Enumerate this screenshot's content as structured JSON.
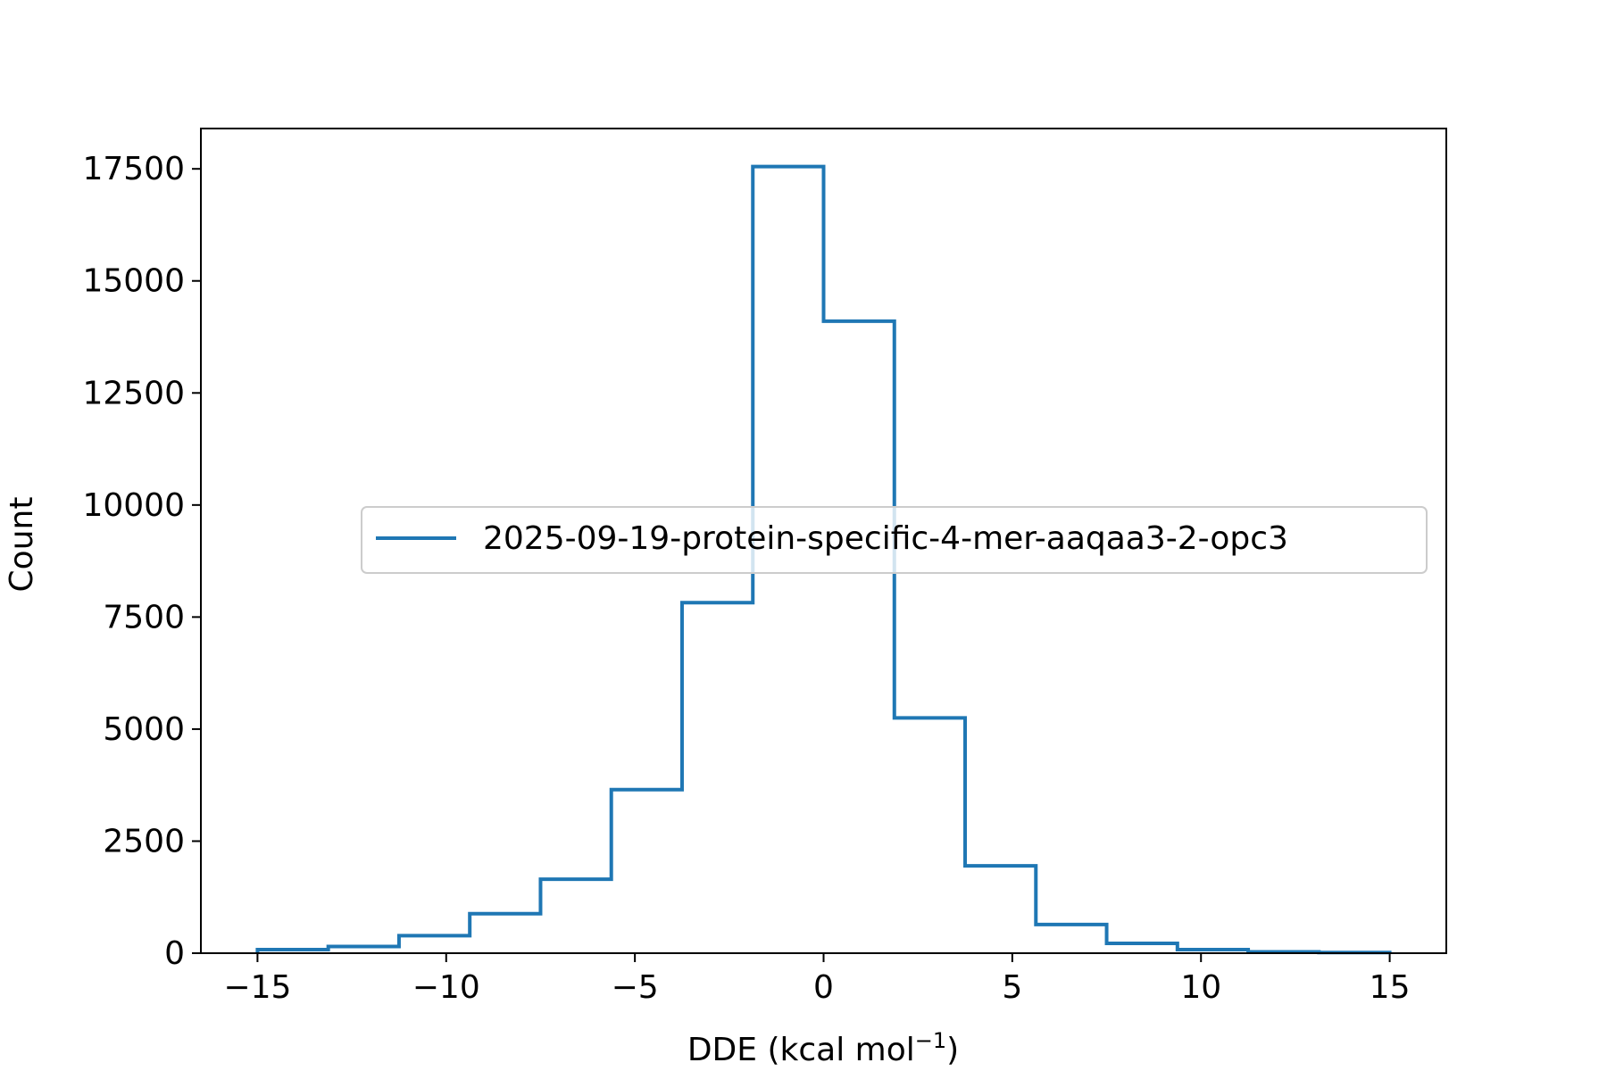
{
  "chart_data": {
    "type": "histogram-step",
    "title": "",
    "xlabel_main": "DDE (kcal mol",
    "xlabel_sup": "−1",
    "xlabel_close": ")",
    "ylabel": "Count",
    "xlim": [
      -16.5,
      16.5
    ],
    "ylim": [
      0,
      18400
    ],
    "x_ticks": [
      -15,
      -10,
      -5,
      0,
      5,
      10,
      15
    ],
    "x_tick_labels": [
      "−15",
      "−10",
      "−5",
      "0",
      "5",
      "10",
      "15"
    ],
    "y_ticks": [
      0,
      2500,
      5000,
      7500,
      10000,
      12500,
      15000,
      17500
    ],
    "y_tick_labels": [
      "0",
      "2500",
      "5000",
      "7500",
      "10000",
      "12500",
      "15000",
      "17500"
    ],
    "grid": false,
    "legend_position": "center-right",
    "series": [
      {
        "name": "2025-09-19-protein-specific-4-mer-aaqaa3-2-opc3",
        "color": "#1f77b4",
        "bin_edges": [
          -15,
          -13.125,
          -11.25,
          -9.375,
          -7.5,
          -5.625,
          -3.75,
          -1.875,
          0,
          1.875,
          3.75,
          5.625,
          7.5,
          9.375,
          11.25,
          13.125,
          15
        ],
        "counts": [
          80,
          150,
          390,
          880,
          1650,
          3650,
          7820,
          17550,
          14100,
          5250,
          1950,
          640,
          220,
          80,
          30,
          15
        ]
      }
    ]
  }
}
